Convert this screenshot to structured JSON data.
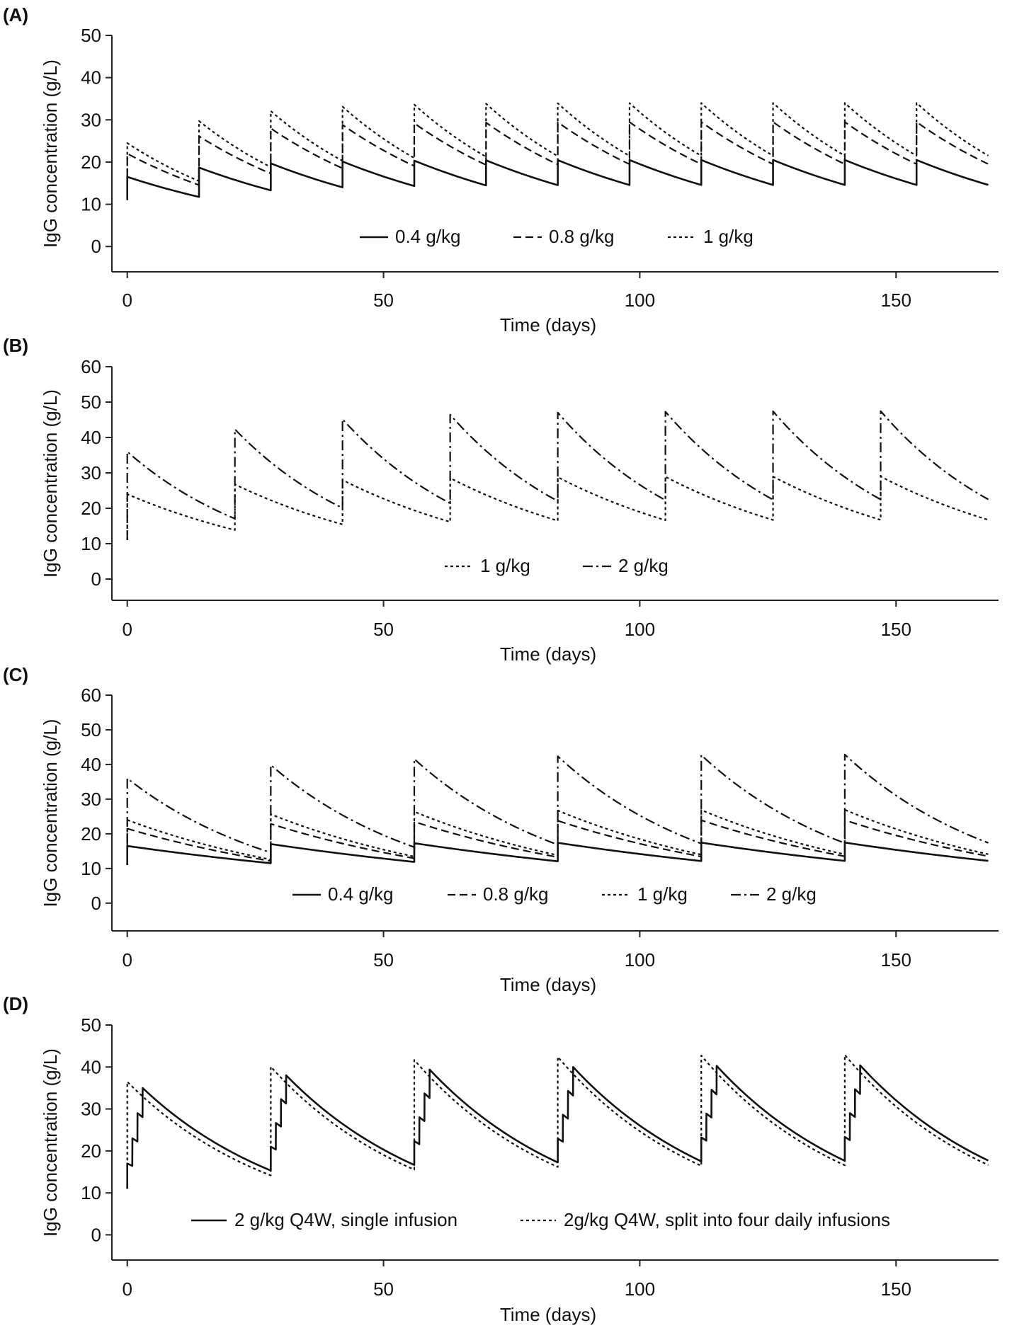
{
  "chart_data": [
    {
      "panel": "(A)",
      "type": "line",
      "xlabel": "Time (days)",
      "ylabel": "IgG concentration (g/L)",
      "xlim": [
        -3,
        170
      ],
      "ylim": [
        -6,
        50
      ],
      "xticks": [
        0,
        50,
        100,
        150
      ],
      "yticks": [
        0,
        10,
        20,
        30,
        40,
        50
      ],
      "legend_position": "bottom-center",
      "series": [
        {
          "name": "0.4 g/kg",
          "style": "solid",
          "interval": 14,
          "end": 168,
          "baseline": 11,
          "first_peak": 16.5,
          "ss_peak": 20.5,
          "ss_trough": 15.2,
          "half_life": 28.5
        },
        {
          "name": "0.8 g/kg",
          "style": "dashed",
          "interval": 14,
          "end": 168,
          "baseline": 11,
          "first_peak": 22,
          "ss_peak": 29.5,
          "ss_trough": 19.5,
          "half_life": 23.5
        },
        {
          "name": "1 g/kg",
          "style": "dotted",
          "interval": 14,
          "end": 168,
          "baseline": 11,
          "first_peak": 24.5,
          "ss_peak": 34,
          "ss_trough": 21.5,
          "half_life": 21.2
        }
      ]
    },
    {
      "panel": "(B)",
      "type": "line",
      "xlabel": "Time (days)",
      "ylabel": "IgG concentration (g/L)",
      "xlim": [
        -3,
        170
      ],
      "ylim": [
        -6,
        60
      ],
      "xticks": [
        0,
        50,
        100,
        150
      ],
      "yticks": [
        0,
        10,
        20,
        30,
        40,
        50,
        60
      ],
      "legend_position": "bottom-center",
      "series": [
        {
          "name": "1 g/kg",
          "style": "dotted",
          "interval": 21,
          "end": 168,
          "baseline": 11,
          "first_peak": 24,
          "ss_peak": 29,
          "ss_trough": 16.8,
          "half_life": 26.5
        },
        {
          "name": "2 g/kg",
          "style": "dashdot",
          "interval": 21,
          "end": 168,
          "baseline": 11,
          "first_peak": 36,
          "ss_peak": 47.5,
          "ss_trough": 22.5,
          "half_life": 19.5
        }
      ]
    },
    {
      "panel": "(C)",
      "type": "line",
      "xlabel": "Time (days)",
      "ylabel": "IgG concentration (g/L)",
      "xlim": [
        -3,
        170
      ],
      "ylim": [
        -8,
        60
      ],
      "xticks": [
        0,
        50,
        100,
        150
      ],
      "yticks": [
        0,
        10,
        20,
        30,
        40,
        50,
        60
      ],
      "legend_position": "bottom-center",
      "series": [
        {
          "name": "0.4 g/kg",
          "style": "solid",
          "interval": 28,
          "end": 168,
          "baseline": 11,
          "first_peak": 16.5,
          "ss_peak": 17.5,
          "ss_trough": 12.2,
          "half_life": 54
        },
        {
          "name": "0.8 g/kg",
          "style": "dashed",
          "interval": 28,
          "end": 168,
          "baseline": 11,
          "first_peak": 21.5,
          "ss_peak": 24,
          "ss_trough": 13.5,
          "half_life": 34
        },
        {
          "name": "1 g/kg",
          "style": "dotted",
          "interval": 28,
          "end": 168,
          "baseline": 11,
          "first_peak": 24,
          "ss_peak": 27,
          "ss_trough": 14.2,
          "half_life": 30
        },
        {
          "name": "2 g/kg",
          "style": "dashdot",
          "interval": 28,
          "end": 168,
          "baseline": 11,
          "first_peak": 36,
          "ss_peak": 43,
          "ss_trough": 17.5,
          "half_life": 21.5
        }
      ]
    },
    {
      "panel": "(D)",
      "type": "line",
      "xlabel": "Time (days)",
      "ylabel": "IgG concentration (g/L)",
      "xlim": [
        -3,
        170
      ],
      "ylim": [
        -6,
        50
      ],
      "xticks": [
        0,
        50,
        100,
        150
      ],
      "yticks": [
        0,
        10,
        20,
        30,
        40,
        50
      ],
      "legend_position": "bottom-center",
      "series": [
        {
          "name": "2 g/kg Q4W, single infusion",
          "style": "solid",
          "interval": 28,
          "end": 168,
          "baseline": 11,
          "split_days": 4,
          "first_peak": 35,
          "ss_peak": 40.5,
          "ss_trough": 18,
          "half_life": 21
        },
        {
          "name": "2g/kg Q4W, split into four daily infusions",
          "style": "dotted",
          "interval": 28,
          "end": 168,
          "baseline": 11,
          "first_peak": 36.5,
          "ss_peak": 43,
          "ss_trough": 17.5,
          "half_life": 20.5
        }
      ]
    }
  ]
}
